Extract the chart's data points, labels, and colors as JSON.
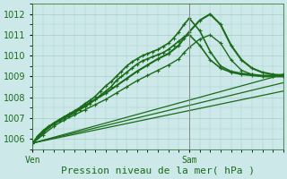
{
  "bg_color": "#cce8e8",
  "grid_color": "#aacccc",
  "line_color": "#1a6b1a",
  "ylim": [
    1005.5,
    1012.5
  ],
  "yticks": [
    1006,
    1007,
    1008,
    1009,
    1010,
    1011,
    1012
  ],
  "xlim": [
    0,
    48
  ],
  "ven_x": 0,
  "sam_x": 30,
  "xlabel": "Pression niveau de la mer( hPa )",
  "ven_label": "Ven",
  "sam_label": "Sam",
  "lines": [
    {
      "x": [
        0,
        1,
        2,
        3,
        4,
        5,
        6,
        7,
        8,
        9,
        10,
        11,
        12,
        13,
        14,
        15,
        16,
        17,
        18,
        19,
        20,
        21,
        22,
        23,
        24,
        25,
        26,
        27,
        28,
        29,
        30,
        32,
        34,
        36,
        38,
        40,
        42,
        44,
        46,
        48
      ],
      "y": [
        1005.8,
        1006.1,
        1006.35,
        1006.55,
        1006.7,
        1006.85,
        1007.0,
        1007.1,
        1007.25,
        1007.4,
        1007.55,
        1007.7,
        1007.9,
        1008.1,
        1008.3,
        1008.5,
        1008.8,
        1009.0,
        1009.2,
        1009.4,
        1009.6,
        1009.75,
        1009.85,
        1009.95,
        1010.05,
        1010.15,
        1010.3,
        1010.5,
        1010.7,
        1010.9,
        1011.0,
        1010.5,
        1009.8,
        1009.4,
        1009.2,
        1009.1,
        1009.05,
        1009.0,
        1009.0,
        1009.0
      ],
      "lw": 1.2,
      "marker": true
    },
    {
      "x": [
        0,
        1,
        2,
        3,
        4,
        5,
        6,
        7,
        8,
        9,
        10,
        11,
        12,
        13,
        14,
        15,
        16,
        17,
        18,
        19,
        20,
        21,
        22,
        23,
        24,
        25,
        26,
        27,
        28,
        29,
        30,
        32,
        34,
        36,
        38,
        40,
        42,
        44,
        46,
        48
      ],
      "y": [
        1005.8,
        1006.15,
        1006.4,
        1006.6,
        1006.75,
        1006.9,
        1007.05,
        1007.2,
        1007.35,
        1007.5,
        1007.7,
        1007.85,
        1008.05,
        1008.3,
        1008.55,
        1008.75,
        1009.0,
        1009.25,
        1009.5,
        1009.7,
        1009.85,
        1010.0,
        1010.1,
        1010.2,
        1010.3,
        1010.45,
        1010.6,
        1010.85,
        1011.15,
        1011.5,
        1011.8,
        1011.2,
        1010.2,
        1009.5,
        1009.25,
        1009.15,
        1009.1,
        1009.05,
        1009.05,
        1009.1
      ],
      "lw": 1.2,
      "marker": true
    },
    {
      "x": [
        0,
        2,
        4,
        6,
        8,
        10,
        12,
        14,
        16,
        18,
        20,
        22,
        24,
        26,
        28,
        29,
        30,
        32,
        34,
        36,
        38,
        40,
        42,
        44,
        46,
        48
      ],
      "y": [
        1005.8,
        1006.3,
        1006.75,
        1007.05,
        1007.3,
        1007.6,
        1007.9,
        1008.2,
        1008.55,
        1008.9,
        1009.25,
        1009.55,
        1009.85,
        1010.1,
        1010.5,
        1010.85,
        1011.15,
        1011.7,
        1012.0,
        1011.5,
        1010.5,
        1009.8,
        1009.4,
        1009.2,
        1009.1,
        1009.05
      ],
      "lw": 1.5,
      "marker": true
    },
    {
      "x": [
        0,
        2,
        4,
        6,
        8,
        10,
        12,
        14,
        16,
        18,
        20,
        22,
        24,
        26,
        28,
        29,
        30,
        32,
        34,
        36,
        38,
        40,
        42,
        44,
        46,
        48
      ],
      "y": [
        1005.8,
        1006.2,
        1006.6,
        1006.9,
        1007.15,
        1007.4,
        1007.65,
        1007.9,
        1008.2,
        1008.5,
        1008.8,
        1009.05,
        1009.3,
        1009.55,
        1009.85,
        1010.15,
        1010.4,
        1010.8,
        1011.0,
        1010.6,
        1009.8,
        1009.3,
        1009.1,
        1009.0,
        1009.0,
        1009.0
      ],
      "lw": 1.0,
      "marker": true
    },
    {
      "x": [
        0,
        48
      ],
      "y": [
        1005.8,
        1009.1
      ],
      "lw": 0.9,
      "marker": false
    },
    {
      "x": [
        0,
        48
      ],
      "y": [
        1005.8,
        1008.7
      ],
      "lw": 0.9,
      "marker": false
    },
    {
      "x": [
        0,
        48
      ],
      "y": [
        1005.8,
        1008.3
      ],
      "lw": 0.9,
      "marker": false
    }
  ],
  "marker_size": 3.0,
  "vline_color": "#888888",
  "label_color": "#1a6b1a",
  "label_fontsize": 7,
  "xlabel_fontsize": 8
}
